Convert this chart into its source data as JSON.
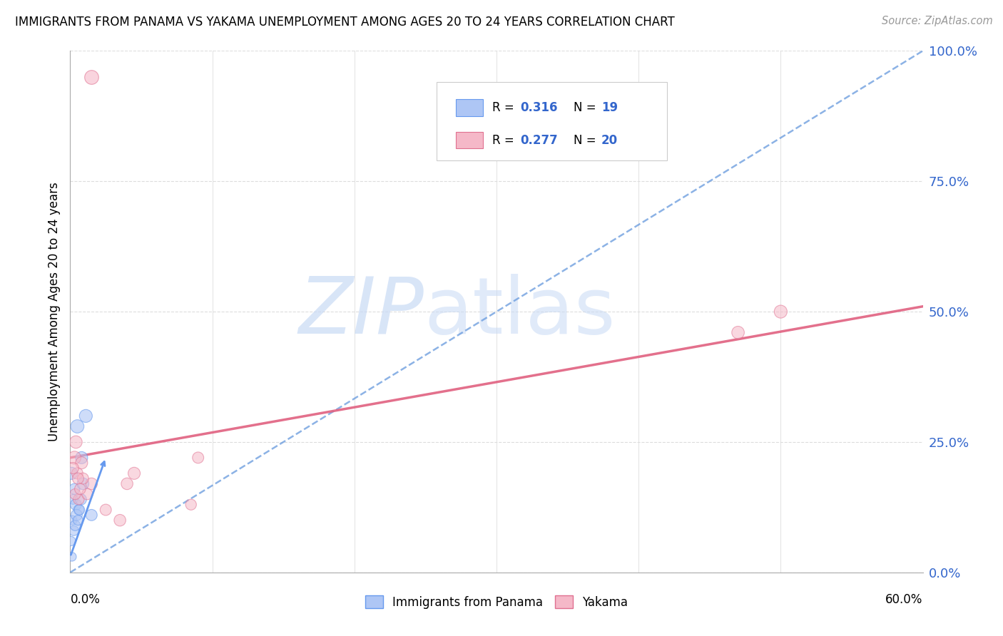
{
  "title": "IMMIGRANTS FROM PANAMA VS YAKAMA UNEMPLOYMENT AMONG AGES 20 TO 24 YEARS CORRELATION CHART",
  "source": "Source: ZipAtlas.com",
  "ylabel": "Unemployment Among Ages 20 to 24 years",
  "ytick_labels": [
    "0.0%",
    "25.0%",
    "50.0%",
    "75.0%",
    "100.0%"
  ],
  "ytick_values": [
    0,
    25,
    50,
    75,
    100
  ],
  "xtick_positions": [
    0,
    10,
    20,
    30,
    40,
    50,
    60
  ],
  "xlim": [
    0,
    60
  ],
  "ylim": [
    0,
    100
  ],
  "legend_r1": "R = ",
  "legend_v1": "0.316",
  "legend_n1_label": "N = ",
  "legend_n1": " 19",
  "legend_r2": "R = ",
  "legend_v2": "0.277",
  "legend_n2_label": "N = ",
  "legend_n2": " 20",
  "legend_label_blue": "Immigrants from Panama",
  "legend_label_pink": "Yakama",
  "blue_fill": "#aec6f5",
  "blue_edge": "#6699ee",
  "blue_line_color": "#6699dd",
  "pink_fill": "#f5b8c8",
  "pink_edge": "#e07090",
  "pink_line_color": "#e06080",
  "accent_blue": "#3366cc",
  "grid_color": "#dddddd",
  "watermark_color": "#c8daf5",
  "blue_points_x": [
    0.5,
    0.3,
    0.8,
    0.2,
    0.4,
    0.6,
    0.9,
    1.1,
    1.5,
    0.15,
    0.25,
    0.35,
    0.45,
    0.55,
    0.65,
    0.75,
    0.1,
    0.05,
    0.12
  ],
  "blue_points_y": [
    28,
    16,
    22,
    14,
    13,
    12,
    17,
    30,
    11,
    10,
    8,
    9,
    11,
    10,
    12,
    14,
    19,
    6,
    3
  ],
  "blue_sizes": [
    180,
    120,
    150,
    100,
    130,
    110,
    140,
    170,
    130,
    90,
    100,
    110,
    130,
    100,
    110,
    130,
    150,
    90,
    80
  ],
  "pink_points_x": [
    0.3,
    0.4,
    0.8,
    1.5,
    2.5,
    4.5,
    4.0,
    9.0,
    8.5,
    0.5,
    0.6,
    0.9,
    1.2,
    3.5,
    50,
    47,
    0.2,
    0.35,
    0.55,
    0.7
  ],
  "pink_points_y": [
    22,
    25,
    21,
    17,
    12,
    19,
    17,
    22,
    13,
    19,
    14,
    18,
    15,
    10,
    50,
    46,
    20,
    15,
    18,
    16
  ],
  "pink_sizes": [
    170,
    160,
    150,
    140,
    130,
    150,
    140,
    130,
    120,
    130,
    120,
    130,
    125,
    140,
    170,
    160,
    130,
    120,
    130,
    125
  ],
  "blue_line_x0": 0,
  "blue_line_y0": 0,
  "blue_line_x1": 60,
  "blue_line_y1": 100,
  "pink_line_x0": 0,
  "pink_line_y0": 22,
  "pink_line_x1": 60,
  "pink_line_y1": 51,
  "blue_short_x0": 0,
  "blue_short_y0": 3,
  "blue_short_x1": 2.5,
  "blue_short_y1": 22,
  "outlier_pink_x": 1.5,
  "outlier_pink_y": 95
}
